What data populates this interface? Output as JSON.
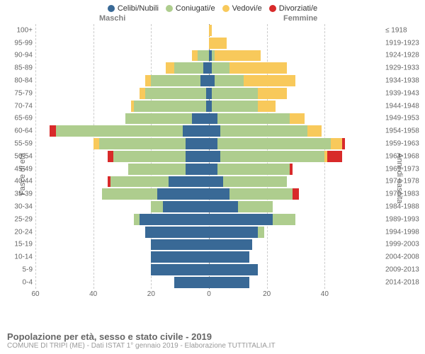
{
  "legend": [
    {
      "label": "Celibi/Nubili",
      "color": "#396996"
    },
    {
      "label": "Coniugati/e",
      "color": "#aecd8e"
    },
    {
      "label": "Vedovi/e",
      "color": "#f8c95b"
    },
    {
      "label": "Divorziati/e",
      "color": "#d82a2a"
    }
  ],
  "gender_left": "Maschi",
  "gender_right": "Femmine",
  "axis_left_title": "Fasce di età",
  "axis_right_title": "Anni di nascita",
  "x_domain_max": 60,
  "x_ticks": [
    60,
    40,
    20,
    0,
    20,
    40
  ],
  "grid_color": "#cccccc",
  "center_color": "#888888",
  "title": "Popolazione per età, sesso e stato civile - 2019",
  "subtitle": "COMUNE DI TRIPI (ME) - Dati ISTAT 1° gennaio 2019 - Elaborazione TUTTITALIA.IT",
  "rows": [
    {
      "age": "100+",
      "birth": "≤ 1918",
      "m": {
        "c": 0,
        "g": 0,
        "v": 0,
        "d": 0
      },
      "f": {
        "c": 0,
        "g": 0,
        "v": 1,
        "d": 0
      }
    },
    {
      "age": "95-99",
      "birth": "1919-1923",
      "m": {
        "c": 0,
        "g": 0,
        "v": 0,
        "d": 0
      },
      "f": {
        "c": 0,
        "g": 0,
        "v": 6,
        "d": 0
      }
    },
    {
      "age": "90-94",
      "birth": "1924-1928",
      "m": {
        "c": 0,
        "g": 4,
        "v": 2,
        "d": 0
      },
      "f": {
        "c": 1,
        "g": 1,
        "v": 16,
        "d": 0
      }
    },
    {
      "age": "85-89",
      "birth": "1929-1933",
      "m": {
        "c": 2,
        "g": 10,
        "v": 3,
        "d": 0
      },
      "f": {
        "c": 1,
        "g": 6,
        "v": 20,
        "d": 0
      }
    },
    {
      "age": "80-84",
      "birth": "1934-1938",
      "m": {
        "c": 3,
        "g": 17,
        "v": 2,
        "d": 0
      },
      "f": {
        "c": 2,
        "g": 10,
        "v": 18,
        "d": 0
      }
    },
    {
      "age": "75-79",
      "birth": "1939-1943",
      "m": {
        "c": 1,
        "g": 21,
        "v": 2,
        "d": 0
      },
      "f": {
        "c": 1,
        "g": 16,
        "v": 10,
        "d": 0
      }
    },
    {
      "age": "70-74",
      "birth": "1944-1948",
      "m": {
        "c": 1,
        "g": 25,
        "v": 1,
        "d": 0
      },
      "f": {
        "c": 1,
        "g": 16,
        "v": 6,
        "d": 0
      }
    },
    {
      "age": "65-69",
      "birth": "1949-1953",
      "m": {
        "c": 6,
        "g": 23,
        "v": 0,
        "d": 0
      },
      "f": {
        "c": 3,
        "g": 25,
        "v": 5,
        "d": 0
      }
    },
    {
      "age": "60-64",
      "birth": "1954-1958",
      "m": {
        "c": 9,
        "g": 44,
        "v": 0,
        "d": 2
      },
      "f": {
        "c": 4,
        "g": 30,
        "v": 5,
        "d": 0
      }
    },
    {
      "age": "55-59",
      "birth": "1959-1963",
      "m": {
        "c": 8,
        "g": 30,
        "v": 2,
        "d": 0
      },
      "f": {
        "c": 3,
        "g": 39,
        "v": 4,
        "d": 1
      }
    },
    {
      "age": "50-54",
      "birth": "1964-1968",
      "m": {
        "c": 8,
        "g": 25,
        "v": 0,
        "d": 2
      },
      "f": {
        "c": 4,
        "g": 36,
        "v": 1,
        "d": 5
      }
    },
    {
      "age": "45-49",
      "birth": "1969-1973",
      "m": {
        "c": 8,
        "g": 20,
        "v": 0,
        "d": 0
      },
      "f": {
        "c": 3,
        "g": 25,
        "v": 0,
        "d": 1
      }
    },
    {
      "age": "40-44",
      "birth": "1974-1978",
      "m": {
        "c": 14,
        "g": 20,
        "v": 0,
        "d": 1
      },
      "f": {
        "c": 5,
        "g": 22,
        "v": 0,
        "d": 0
      }
    },
    {
      "age": "35-39",
      "birth": "1979-1983",
      "m": {
        "c": 18,
        "g": 19,
        "v": 0,
        "d": 0
      },
      "f": {
        "c": 7,
        "g": 22,
        "v": 0,
        "d": 2
      }
    },
    {
      "age": "30-34",
      "birth": "1984-1988",
      "m": {
        "c": 16,
        "g": 4,
        "v": 0,
        "d": 0
      },
      "f": {
        "c": 10,
        "g": 12,
        "v": 0,
        "d": 0
      }
    },
    {
      "age": "25-29",
      "birth": "1989-1993",
      "m": {
        "c": 24,
        "g": 2,
        "v": 0,
        "d": 0
      },
      "f": {
        "c": 22,
        "g": 8,
        "v": 0,
        "d": 0
      }
    },
    {
      "age": "20-24",
      "birth": "1994-1998",
      "m": {
        "c": 22,
        "g": 0,
        "v": 0,
        "d": 0
      },
      "f": {
        "c": 17,
        "g": 2,
        "v": 0,
        "d": 0
      }
    },
    {
      "age": "15-19",
      "birth": "1999-2003",
      "m": {
        "c": 20,
        "g": 0,
        "v": 0,
        "d": 0
      },
      "f": {
        "c": 15,
        "g": 0,
        "v": 0,
        "d": 0
      }
    },
    {
      "age": "10-14",
      "birth": "2004-2008",
      "m": {
        "c": 20,
        "g": 0,
        "v": 0,
        "d": 0
      },
      "f": {
        "c": 14,
        "g": 0,
        "v": 0,
        "d": 0
      }
    },
    {
      "age": "5-9",
      "birth": "2009-2013",
      "m": {
        "c": 20,
        "g": 0,
        "v": 0,
        "d": 0
      },
      "f": {
        "c": 17,
        "g": 0,
        "v": 0,
        "d": 0
      }
    },
    {
      "age": "0-4",
      "birth": "2014-2018",
      "m": {
        "c": 12,
        "g": 0,
        "v": 0,
        "d": 0
      },
      "f": {
        "c": 14,
        "g": 0,
        "v": 0,
        "d": 0
      }
    }
  ]
}
